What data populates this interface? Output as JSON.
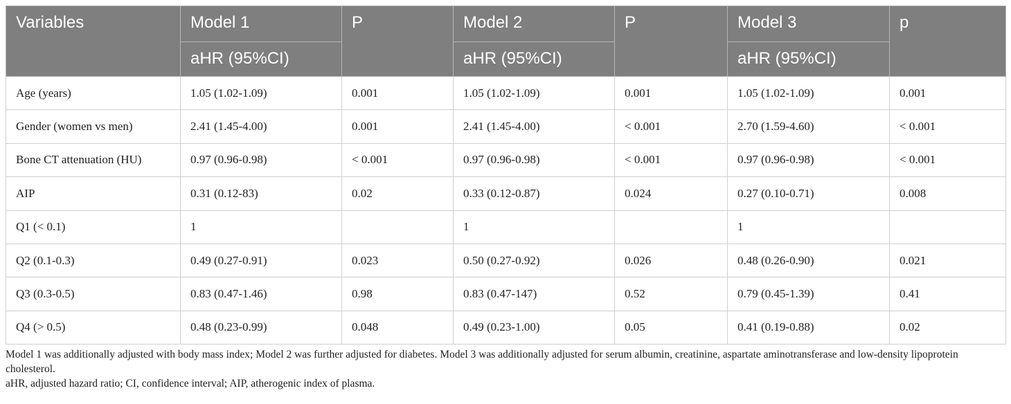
{
  "header": {
    "columns": [
      "Variables",
      "Model 1",
      "P",
      "Model 2",
      "P",
      "Model 3",
      "p"
    ],
    "subheader": [
      "aHR (95%CI)",
      "aHR (95%CI)",
      "aHR (95%CI)"
    ]
  },
  "rows": [
    [
      "Age (years)",
      "1.05 (1.02-1.09)",
      "0.001",
      "1.05 (1.02-1.09)",
      "0.001",
      "1.05 (1.02-1.09)",
      "0.001"
    ],
    [
      "Gender (women vs men)",
      "2.41 (1.45-4.00)",
      "0.001",
      "2.41 (1.45-4.00)",
      "< 0.001",
      "2.70 (1.59-4.60)",
      "< 0.001"
    ],
    [
      "Bone CT attenuation (HU)",
      "0.97 (0.96-0.98)",
      "< 0.001",
      "0.97 (0.96-0.98)",
      "< 0.001",
      "0.97 (0.96-0.98)",
      "< 0.001"
    ],
    [
      "AIP",
      "0.31 (0.12-83)",
      "0.02",
      "0.33 (0.12-0.87)",
      "0.024",
      "0.27 (0.10-0.71)",
      "0.008"
    ],
    [
      "Q1 (< 0.1)",
      "1",
      null,
      "1",
      null,
      "1",
      null
    ],
    [
      "Q2 (0.1-0.3)",
      "0.49 (0.27-0.91)",
      "0.023",
      "0.50 (0.27-0.92)",
      "0.026",
      "0.48 (0.26-0.90)",
      "0.021"
    ],
    [
      "Q3 (0.3-0.5)",
      "0.83 (0.47-1.46)",
      "0.98",
      "0.83 (0.47-147)",
      "0.52",
      "0.79 (0.45-1.39)",
      "0.41"
    ],
    [
      "Q4 (> 0.5)",
      "0.48 (0.23-0.99)",
      "0.048",
      "0.49 (0.23-1.00)",
      "0.05",
      "0.41 (0.19-0.88)",
      "0.02"
    ]
  ],
  "footnotes": [
    "Model 1 was additionally adjusted with body mass index; Model 2 was further adjusted for diabetes. Model 3 was additionally adjusted for serum albumin, creatinine, aspartate aminotransferase and low-density lipoprotein cholesterol.",
    "aHR, adjusted hazard ratio; CI, confidence interval; AIP, atherogenic index of plasma."
  ]
}
